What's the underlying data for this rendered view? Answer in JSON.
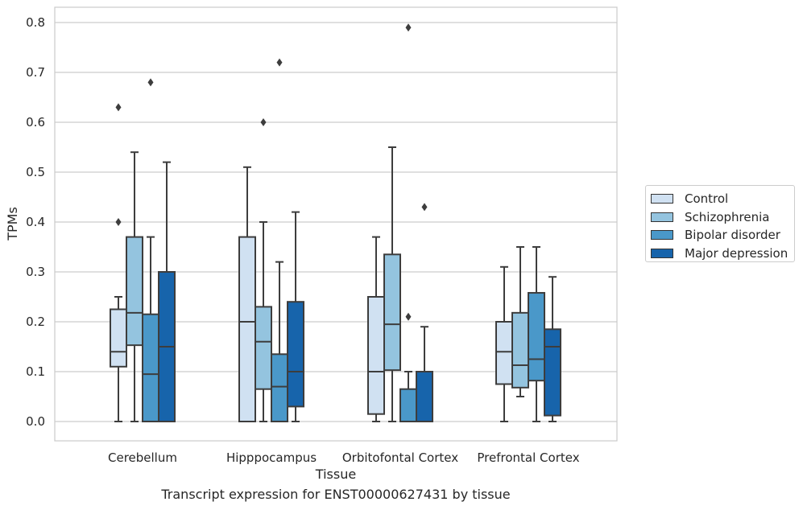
{
  "caption": "Transcript expression for ENST00000627431 by tissue",
  "chart_data": {
    "type": "boxplot",
    "xlabel": "Tissue",
    "ylabel": "TPMs",
    "ylim": [
      -0.04,
      0.83
    ],
    "yticks": [
      0.0,
      0.1,
      0.2,
      0.3,
      0.4,
      0.5,
      0.6,
      0.7,
      0.8
    ],
    "ytick_labels": [
      "0.0",
      "0.1",
      "0.2",
      "0.3",
      "0.4",
      "0.5",
      "0.6",
      "0.7",
      "0.8"
    ],
    "grid": "horizontal",
    "legend_position": "right",
    "categories": [
      "Cerebellum",
      "Hipppocampus",
      "Orbitofontal Cortex",
      "Prefrontal Cortex"
    ],
    "series": [
      {
        "name": "Control",
        "color": "#d0e1f2",
        "boxes": [
          {
            "whislo": 0.0,
            "q1": 0.11,
            "med": 0.14,
            "q3": 0.225,
            "whishi": 0.25,
            "fliers": [
              0.4,
              0.63
            ]
          },
          {
            "whislo": 0.0,
            "q1": 0.0,
            "med": 0.2,
            "q3": 0.37,
            "whishi": 0.51,
            "fliers": []
          },
          {
            "whislo": 0.0,
            "q1": 0.015,
            "med": 0.1,
            "q3": 0.25,
            "whishi": 0.37,
            "fliers": []
          },
          {
            "whislo": 0.0,
            "q1": 0.075,
            "med": 0.14,
            "q3": 0.2,
            "whishi": 0.31,
            "fliers": []
          }
        ]
      },
      {
        "name": "Schizophrenia",
        "color": "#94c4df",
        "boxes": [
          {
            "whislo": 0.0,
            "q1": 0.153,
            "med": 0.218,
            "q3": 0.37,
            "whishi": 0.54,
            "fliers": []
          },
          {
            "whislo": 0.0,
            "q1": 0.065,
            "med": 0.16,
            "q3": 0.23,
            "whishi": 0.4,
            "fliers": [
              0.6
            ]
          },
          {
            "whislo": 0.0,
            "q1": 0.103,
            "med": 0.195,
            "q3": 0.335,
            "whishi": 0.55,
            "fliers": []
          },
          {
            "whislo": 0.05,
            "q1": 0.068,
            "med": 0.113,
            "q3": 0.218,
            "whishi": 0.35,
            "fliers": []
          }
        ]
      },
      {
        "name": "Bipolar disorder",
        "color": "#4a98c9",
        "boxes": [
          {
            "whislo": 0.0,
            "q1": 0.0,
            "med": 0.095,
            "q3": 0.215,
            "whishi": 0.37,
            "fliers": [
              0.68
            ]
          },
          {
            "whislo": 0.0,
            "q1": 0.0,
            "med": 0.07,
            "q3": 0.135,
            "whishi": 0.32,
            "fliers": [
              0.72
            ]
          },
          {
            "whislo": 0.0,
            "q1": 0.0,
            "med": 0.0,
            "q3": 0.065,
            "whishi": 0.1,
            "fliers": [
              0.21,
              0.79
            ]
          },
          {
            "whislo": 0.0,
            "q1": 0.082,
            "med": 0.125,
            "q3": 0.258,
            "whishi": 0.35,
            "fliers": []
          }
        ]
      },
      {
        "name": "Major depression",
        "color": "#1764ab",
        "boxes": [
          {
            "whislo": 0.0,
            "q1": 0.0,
            "med": 0.15,
            "q3": 0.3,
            "whishi": 0.52,
            "fliers": []
          },
          {
            "whislo": 0.0,
            "q1": 0.03,
            "med": 0.1,
            "q3": 0.24,
            "whishi": 0.42,
            "fliers": []
          },
          {
            "whislo": 0.0,
            "q1": 0.0,
            "med": 0.0,
            "q3": 0.1,
            "whishi": 0.19,
            "fliers": [
              0.43
            ]
          },
          {
            "whislo": 0.0,
            "q1": 0.012,
            "med": 0.15,
            "q3": 0.185,
            "whishi": 0.29,
            "fliers": []
          }
        ]
      }
    ]
  }
}
